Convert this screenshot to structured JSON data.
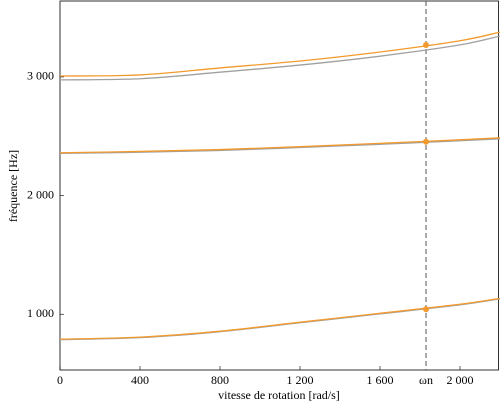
{
  "chart_data": {
    "type": "line",
    "x_label": "vitesse de rotation [rad/s]",
    "y_label": "fréquence [Hz]",
    "x": [
      0,
      400,
      800,
      1200,
      1600,
      2000,
      2200
    ],
    "series": [
      {
        "color": "#a0a0a0",
        "values": [
          786,
          803,
          853,
          928,
          1003,
          1079,
          1130
        ]
      },
      {
        "color": "#a0a0a0",
        "values": [
          2356,
          2365,
          2380,
          2405,
          2432,
          2462,
          2478
        ]
      },
      {
        "color": "#a0a0a0",
        "values": [
          2975,
          2985,
          3040,
          3100,
          3175,
          3270,
          3345
        ]
      },
      {
        "color": "#f39a2e",
        "values": [
          790,
          807,
          857,
          933,
          1008,
          1084,
          1134
        ]
      },
      {
        "color": "#f39a2e",
        "values": [
          2361,
          2372,
          2388,
          2412,
          2440,
          2470,
          2487
        ]
      },
      {
        "color": "#f39a2e",
        "values": [
          3008,
          3017,
          3076,
          3134,
          3210,
          3305,
          3378
        ]
      }
    ],
    "points": {
      "x": 1830,
      "values": [
        1042,
        2454,
        3269
      ],
      "color": "#f39a2e"
    },
    "xlim": [
      0,
      2200
    ],
    "ylim": [
      530,
      3640
    ],
    "xticks": [
      0,
      400,
      800,
      {
        "value": 1200,
        "label": "1 200"
      },
      {
        "value": 1600,
        "label": "1 600"
      },
      {
        "value": 1830,
        "label": "ωn"
      },
      {
        "value": 2000,
        "label": "2 000"
      }
    ],
    "yticks": [
      {
        "value": 1000,
        "label": "1 000"
      },
      {
        "value": 2000,
        "label": "2 000"
      },
      {
        "value": 3000,
        "label": "3 000"
      }
    ],
    "marker_line": 5
  }
}
